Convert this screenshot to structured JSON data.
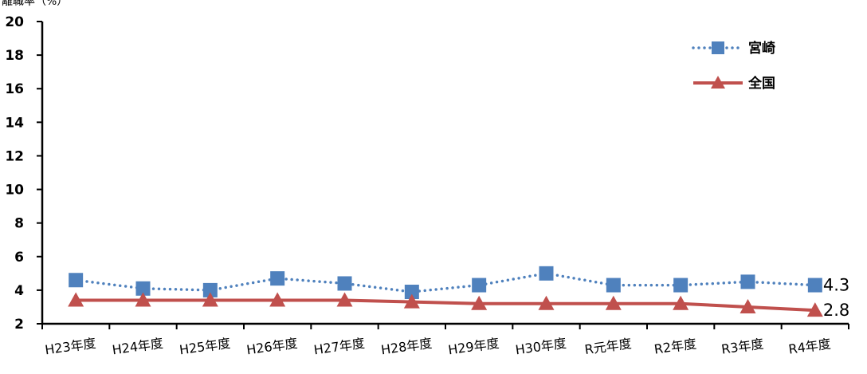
{
  "chart_data": {
    "type": "line",
    "ylabel": "離職率（%）",
    "ylim": [
      2,
      20
    ],
    "yticks": [
      2,
      4,
      6,
      8,
      10,
      12,
      14,
      16,
      18,
      20
    ],
    "categories": [
      "H23年度",
      "H24年度",
      "H25年度",
      "H26年度",
      "H27年度",
      "H28年度",
      "H29年度",
      "H30年度",
      "R元年度",
      "R2年度",
      "R3年度",
      "R4年度"
    ],
    "series": [
      {
        "name": "宮崎",
        "values": [
          4.6,
          4.1,
          4.0,
          4.7,
          4.4,
          3.9,
          4.3,
          5.0,
          4.3,
          4.3,
          4.5,
          4.3
        ],
        "color": "#4F81BD",
        "line_style": "dotted",
        "marker": "square",
        "end_label": "4.3"
      },
      {
        "name": "全国",
        "values": [
          3.4,
          3.4,
          3.4,
          3.4,
          3.4,
          3.3,
          3.2,
          3.2,
          3.2,
          3.2,
          3.0,
          2.8
        ],
        "color": "#C0504D",
        "line_style": "solid",
        "marker": "triangle",
        "end_label": "2.8"
      }
    ],
    "legend_position": "top-right",
    "grid": false
  }
}
